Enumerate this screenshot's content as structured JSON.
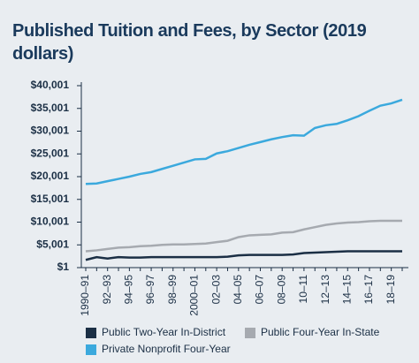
{
  "chart_data": {
    "type": "line",
    "title": "Published Tuition and Fees, by Sector (2019 dollars)",
    "categories": [
      "1990–91",
      null,
      "92–93",
      null,
      "94–95",
      null,
      "96–97",
      null,
      "98–99",
      null,
      "2000–01",
      null,
      "02–03",
      null,
      "04–05",
      null,
      "06–07",
      null,
      "08–09",
      null,
      "10–11",
      null,
      "12–13",
      null,
      "14–15",
      null,
      "16–17",
      null,
      "18–19",
      null
    ],
    "series": [
      {
        "name": "Public Two-Year In-District",
        "color": "#1b2f45",
        "values": [
          1700,
          2300,
          2000,
          2300,
          2200,
          2200,
          2300,
          2300,
          2300,
          2300,
          2300,
          2300,
          2300,
          2400,
          2700,
          2800,
          2800,
          2800,
          2800,
          2900,
          3200,
          3300,
          3400,
          3500,
          3600,
          3600,
          3600,
          3600,
          3600,
          3600
        ]
      },
      {
        "name": "Public Four-Year In-State",
        "color": "#a6aab0",
        "values": [
          3600,
          3800,
          4100,
          4400,
          4500,
          4700,
          4800,
          5000,
          5100,
          5100,
          5200,
          5300,
          5600,
          5900,
          6700,
          7100,
          7200,
          7300,
          7700,
          7800,
          8400,
          8900,
          9400,
          9700,
          9900,
          10000,
          10200,
          10300,
          10300,
          10300
        ]
      },
      {
        "name": "Private Nonprofit Four-Year",
        "color": "#3ba9dd",
        "values": [
          18400,
          18500,
          19000,
          19500,
          20000,
          20600,
          21000,
          21700,
          22400,
          23100,
          23800,
          23900,
          25100,
          25600,
          26300,
          27000,
          27600,
          28200,
          28700,
          29100,
          29000,
          30700,
          31300,
          31600,
          32400,
          33300,
          34500,
          35600,
          36100,
          36900
        ]
      }
    ],
    "ylim": [
      1,
      40001
    ],
    "yticks": [
      {
        "value": 1,
        "label": "$1"
      },
      {
        "value": 5001,
        "label": "$5,001"
      },
      {
        "value": 10001,
        "label": "$10,001"
      },
      {
        "value": 15001,
        "label": "$15,001"
      },
      {
        "value": 20001,
        "label": "$20,001"
      },
      {
        "value": 25001,
        "label": "$25,001"
      },
      {
        "value": 30001,
        "label": "$30,001"
      },
      {
        "value": 35001,
        "label": "$35,001"
      },
      {
        "value": 40001,
        "label": "$40,001"
      }
    ]
  }
}
